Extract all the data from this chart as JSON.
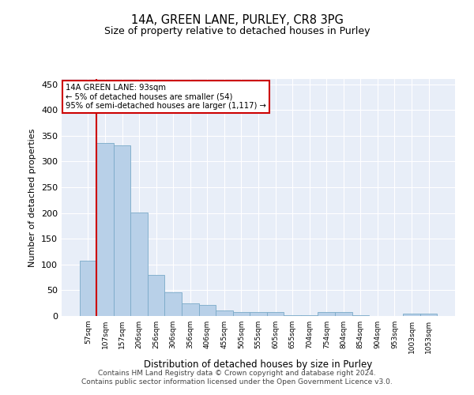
{
  "title": "14A, GREEN LANE, PURLEY, CR8 3PG",
  "subtitle": "Size of property relative to detached houses in Purley",
  "xlabel": "Distribution of detached houses by size in Purley",
  "ylabel": "Number of detached properties",
  "categories": [
    "57sqm",
    "107sqm",
    "157sqm",
    "206sqm",
    "256sqm",
    "306sqm",
    "356sqm",
    "406sqm",
    "455sqm",
    "505sqm",
    "555sqm",
    "605sqm",
    "655sqm",
    "704sqm",
    "754sqm",
    "804sqm",
    "854sqm",
    "904sqm",
    "953sqm",
    "1003sqm",
    "1053sqm"
  ],
  "values": [
    107,
    336,
    331,
    201,
    80,
    46,
    24,
    21,
    10,
    8,
    7,
    7,
    2,
    2,
    8,
    8,
    2,
    0,
    0,
    5,
    5
  ],
  "bar_color": "#b8d0e8",
  "bar_edge_color": "#7aaac8",
  "vline_color": "#cc0000",
  "vline_x": 0.5,
  "background_color": "#e8eef8",
  "grid_color": "#ffffff",
  "annotation_text_line1": "14A GREEN LANE: 93sqm",
  "annotation_text_line2": "← 5% of detached houses are smaller (54)",
  "annotation_text_line3": "95% of semi-detached houses are larger (1,117) →",
  "footer_text": "Contains HM Land Registry data © Crown copyright and database right 2024.\nContains public sector information licensed under the Open Government Licence v3.0.",
  "ylim": [
    0,
    460
  ],
  "yticks": [
    0,
    50,
    100,
    150,
    200,
    250,
    300,
    350,
    400,
    450
  ]
}
